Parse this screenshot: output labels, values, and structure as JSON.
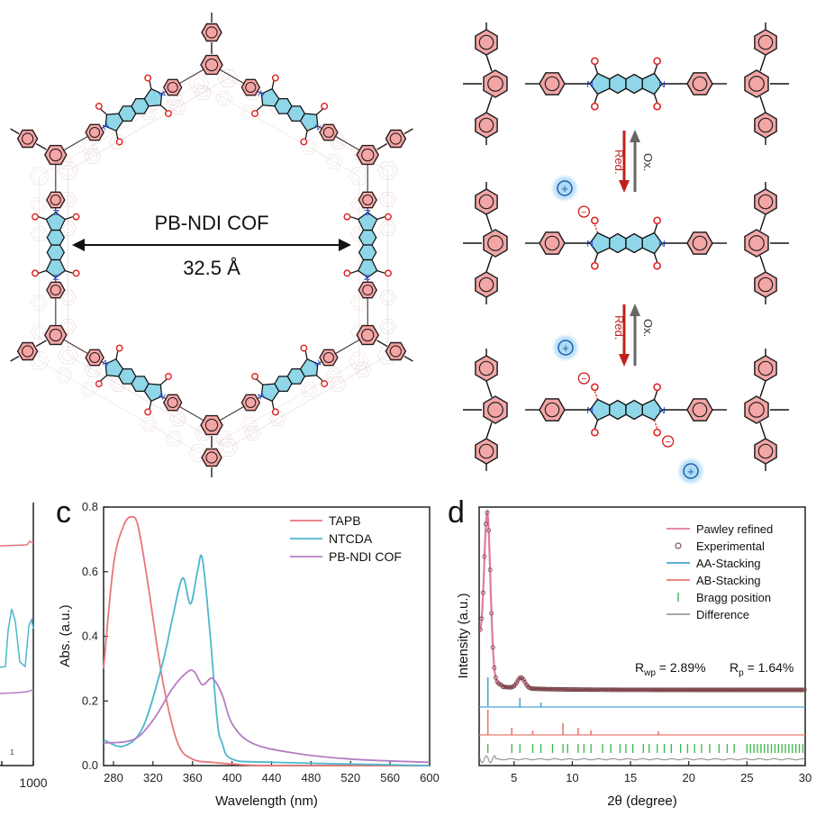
{
  "panel_a": {
    "cof_label": "PB-NDI COF",
    "pore_size": "32.5 Å",
    "colors": {
      "pink": "#f4a6a6",
      "ring_stroke": "#2b1b1b",
      "cyan": "#8fd6e8",
      "oxygen": "#e02020",
      "nitrogen": "#1d3fd8"
    }
  },
  "panel_scheme": {
    "step1": {
      "reduction": "Red.",
      "oxidation": "Ox."
    },
    "step2": {
      "reduction": "Red.",
      "oxidation": "Ox."
    },
    "cation_symbol": "+",
    "anion_symbol": "−"
  },
  "panel_b_partial": {
    "x_tick_visible": "1000",
    "small_label": "1"
  },
  "panel_c": {
    "label": "c",
    "chart_data": {
      "type": "line",
      "xlabel": "Wavelength (nm)",
      "ylabel": "Abs. (a.u.)",
      "xlim": [
        270,
        600
      ],
      "ylim": [
        0,
        0.8
      ],
      "x_ticks": [
        "280",
        "320",
        "360",
        "400",
        "440",
        "480",
        "520",
        "560",
        "600"
      ],
      "y_ticks": [
        "0.0",
        "0.2",
        "0.4",
        "0.6",
        "0.8"
      ],
      "legend_position": "top-right",
      "series": [
        {
          "name": "TAPB",
          "color": "#e8767a",
          "x": [
            270,
            280,
            290,
            298,
            305,
            315,
            330,
            345,
            360,
            380,
            400,
            440,
            600
          ],
          "y": [
            0.3,
            0.62,
            0.74,
            0.77,
            0.74,
            0.56,
            0.26,
            0.07,
            0.02,
            0.01,
            0.005,
            0.0,
            0.0
          ]
        },
        {
          "name": "NTCDA",
          "color": "#4cb8cc",
          "x": [
            270,
            290,
            310,
            330,
            340,
            350,
            358,
            365,
            370,
            378,
            385,
            390,
            400,
            440,
            600
          ],
          "y": [
            0.08,
            0.06,
            0.12,
            0.32,
            0.46,
            0.58,
            0.5,
            0.6,
            0.64,
            0.4,
            0.14,
            0.07,
            0.02,
            0.01,
            0.0
          ]
        },
        {
          "name": "PB-NDI COF",
          "color": "#b57dc4",
          "x": [
            270,
            300,
            320,
            340,
            355,
            362,
            370,
            380,
            390,
            400,
            420,
            460,
            520,
            600
          ],
          "y": [
            0.07,
            0.08,
            0.14,
            0.24,
            0.29,
            0.29,
            0.25,
            0.27,
            0.22,
            0.13,
            0.07,
            0.04,
            0.02,
            0.01
          ]
        }
      ]
    }
  },
  "panel_d": {
    "label": "d",
    "r_wp_text": "R",
    "r_wp_sub": "wp",
    "r_wp_value": " = 2.89%",
    "r_p_text": "R",
    "r_p_sub": "p",
    "r_p_value": " = 1.64%",
    "chart_data": {
      "type": "line",
      "xlabel": "2θ (degree)",
      "ylabel": "Intensity (a.u.)",
      "xlim": [
        2,
        30
      ],
      "x_ticks": [
        "5",
        "10",
        "15",
        "20",
        "25",
        "30"
      ],
      "legend_position": "top-right",
      "legend": [
        {
          "name": "Pawley refined",
          "color": "#e07aa0",
          "marker": "line"
        },
        {
          "name": "Experimental",
          "color": "#6b3a3a",
          "marker": "circle"
        },
        {
          "name": "AA-Stacking",
          "color": "#4aa3d8",
          "marker": "line"
        },
        {
          "name": "AB-Stacking",
          "color": "#e77a74",
          "marker": "line"
        },
        {
          "name": "Bragg position",
          "color": "#3bb54a",
          "marker": "tick"
        },
        {
          "name": "Difference",
          "color": "#999999",
          "marker": "line"
        }
      ],
      "pattern_peak_2theta": [
        2.7,
        5.5
      ],
      "aa_peaks_2theta": [
        2.75,
        5.5,
        7.3
      ],
      "ab_peaks_2theta": [
        2.75,
        4.8,
        6.6,
        9.2,
        10.5,
        11.6,
        17.4
      ],
      "bragg_positions": [
        2.75,
        4.8,
        5.5,
        6.6,
        7.3,
        8.3,
        9.2,
        9.6,
        10.5,
        11.0,
        11.6,
        12.6,
        13.3,
        14.1,
        14.6,
        15.2,
        16.1,
        16.6,
        17.3,
        17.9,
        18.5,
        19.3,
        19.9,
        20.5,
        21.1,
        21.8,
        22.6,
        23.3,
        23.9,
        25.0,
        25.3,
        25.6,
        25.9,
        26.2,
        26.5,
        26.8,
        27.1,
        27.4,
        27.7,
        28.0,
        28.3,
        28.6,
        28.9,
        29.2,
        29.5,
        29.8
      ]
    }
  }
}
